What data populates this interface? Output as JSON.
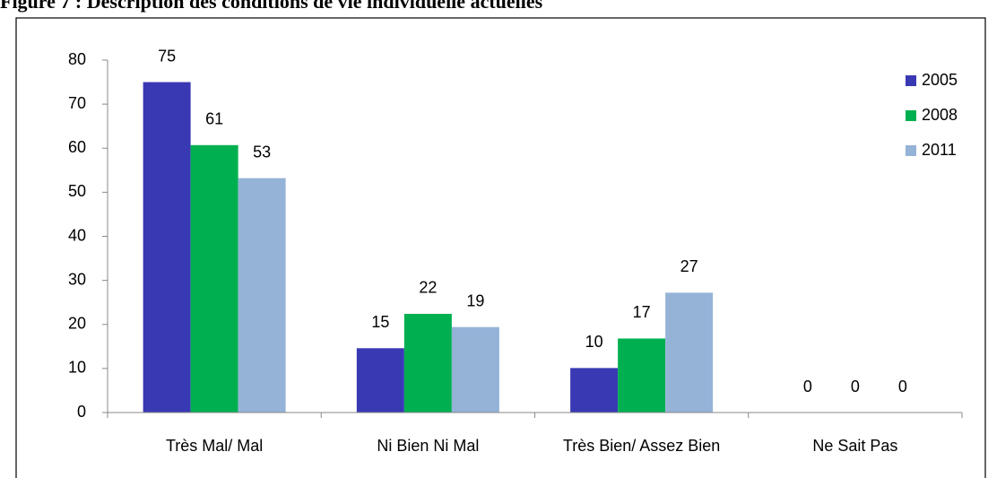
{
  "chart_data": {
    "type": "bar",
    "title": "Figure 7 : Description des conditions de vie individuelle actuelles",
    "categories": [
      "Très Mal/ Mal",
      "Ni Bien Ni Mal",
      "Très Bien/ Assez Bien",
      "Ne Sait Pas"
    ],
    "series": [
      {
        "name": "2005",
        "color": "#3939b4",
        "values": [
          75,
          14.6,
          10.1,
          0
        ],
        "value_labels": [
          "75",
          "15",
          "10",
          "0"
        ]
      },
      {
        "name": "2008",
        "color": "#00b050",
        "values": [
          60.7,
          22.4,
          16.8,
          0
        ],
        "value_labels": [
          "61",
          "22",
          "17",
          "0"
        ]
      },
      {
        "name": "2011",
        "color": "#95b3d7",
        "values": [
          53.2,
          19.4,
          27.2,
          0
        ],
        "value_labels": [
          "53",
          "19",
          "27",
          "0"
        ]
      }
    ],
    "ylim": [
      0,
      80
    ],
    "yticks": [
      0,
      10,
      20,
      30,
      40,
      50,
      60,
      70,
      80
    ],
    "grid": false,
    "legend": "top-right"
  }
}
